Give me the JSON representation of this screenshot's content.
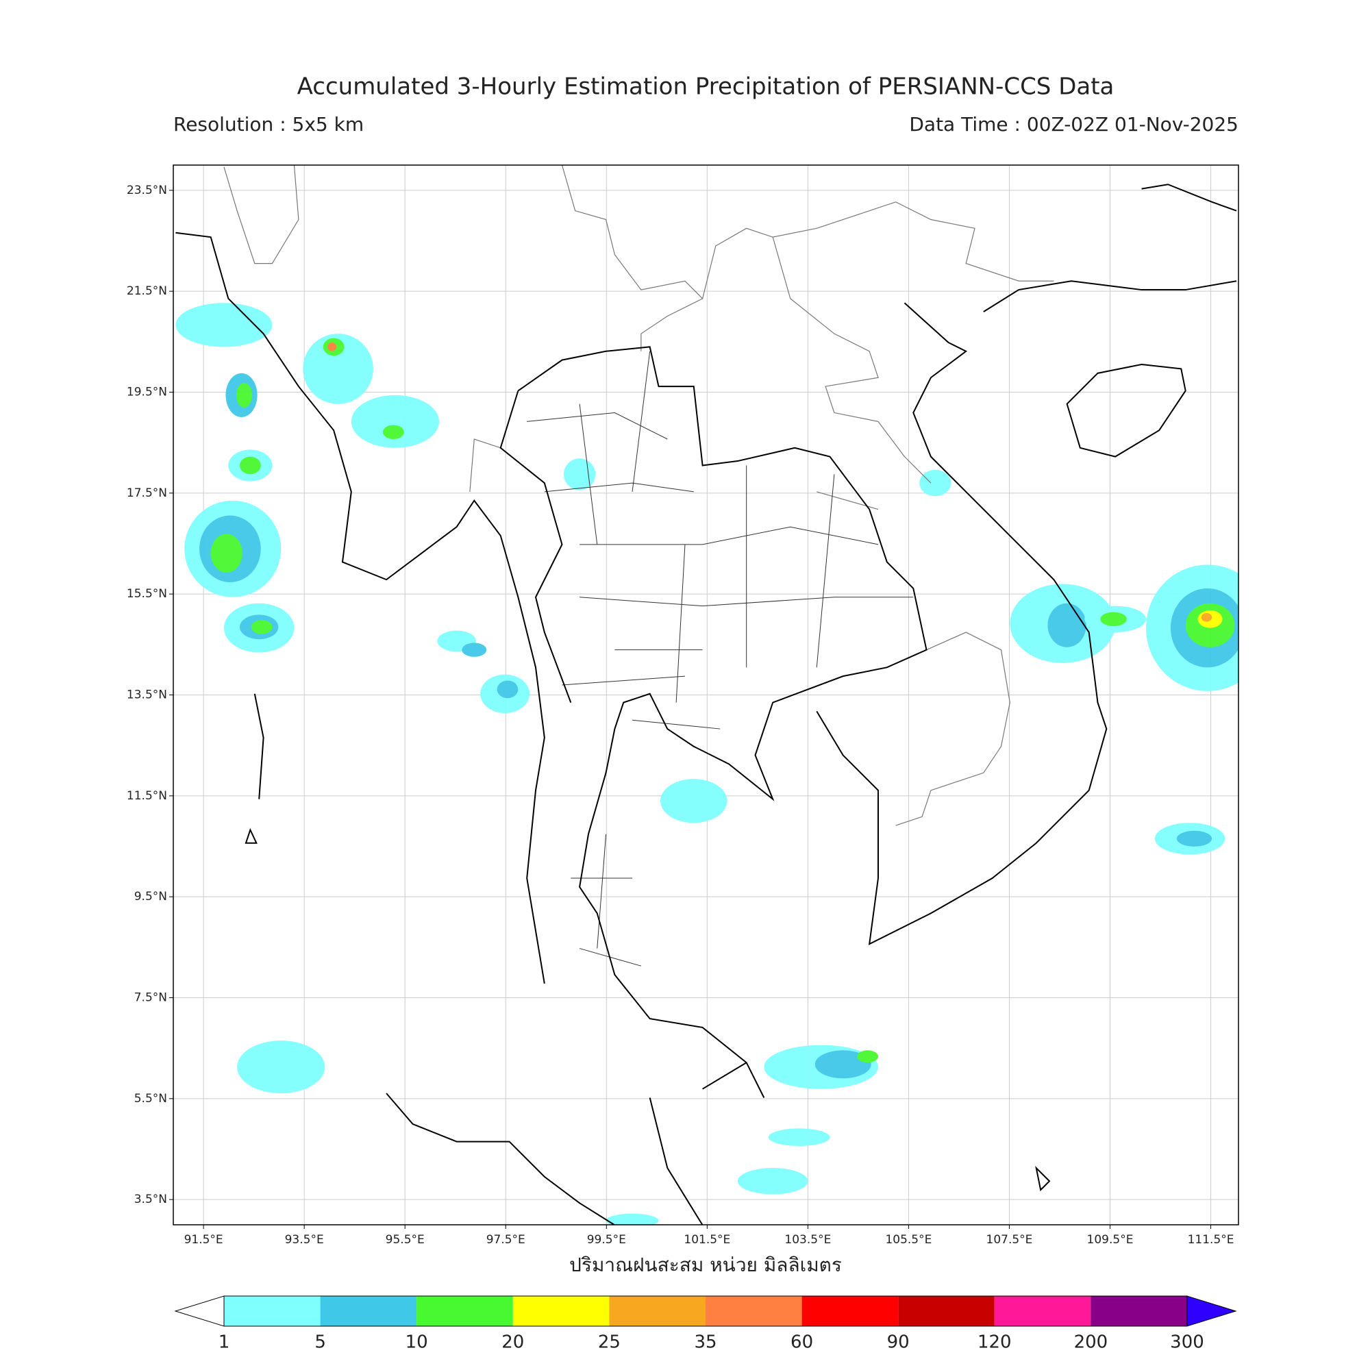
{
  "header": {
    "title": "Accumulated 3-Hourly Estimation Precipitation of PERSIANN-CCS Data",
    "resolution": "Resolution : 5x5 km",
    "data_time": "Data Time : 00Z-02Z 01-Nov-2025"
  },
  "map": {
    "xlim": [
      90.9,
      112.05
    ],
    "ylim": [
      3.0,
      24.0
    ],
    "grid": true,
    "xticks": [
      {
        "value": 91.5,
        "label": "91.5°E"
      },
      {
        "value": 93.5,
        "label": "93.5°E"
      },
      {
        "value": 95.5,
        "label": "95.5°E"
      },
      {
        "value": 97.5,
        "label": "97.5°E"
      },
      {
        "value": 99.5,
        "label": "99.5°E"
      },
      {
        "value": 101.5,
        "label": "101.5°E"
      },
      {
        "value": 103.5,
        "label": "103.5°E"
      },
      {
        "value": 105.5,
        "label": "105.5°E"
      },
      {
        "value": 107.5,
        "label": "107.5°E"
      },
      {
        "value": 109.5,
        "label": "109.5°E"
      },
      {
        "value": 111.5,
        "label": "111.5°E"
      }
    ],
    "yticks": [
      {
        "value": 3.5,
        "label": "3.5°N"
      },
      {
        "value": 5.5,
        "label": "5.5°N"
      },
      {
        "value": 7.5,
        "label": "7.5°N"
      },
      {
        "value": 9.5,
        "label": "9.5°N"
      },
      {
        "value": 11.5,
        "label": "11.5°N"
      },
      {
        "value": 13.5,
        "label": "13.5°N"
      },
      {
        "value": 15.5,
        "label": "15.5°N"
      },
      {
        "value": 17.5,
        "label": "17.5°N"
      },
      {
        "value": 19.5,
        "label": "19.5°N"
      },
      {
        "value": 21.5,
        "label": "21.5°N"
      },
      {
        "value": 23.5,
        "label": "23.5°N"
      }
    ]
  },
  "colorbar": {
    "label": "ปริมาณฝนสะสม หน่วย มิลลิเมตร",
    "boundaries": [
      1,
      5,
      10,
      20,
      25,
      35,
      60,
      90,
      120,
      200,
      300
    ],
    "colors": [
      "#80ffff",
      "#40c8e8",
      "#48f830",
      "#ffff00",
      "#f8a820",
      "#ff8040",
      "#ff0000",
      "#c80000",
      "#ff1898",
      "#880088"
    ],
    "under_color": "#ffffff",
    "over_color": "#3000ff"
  }
}
